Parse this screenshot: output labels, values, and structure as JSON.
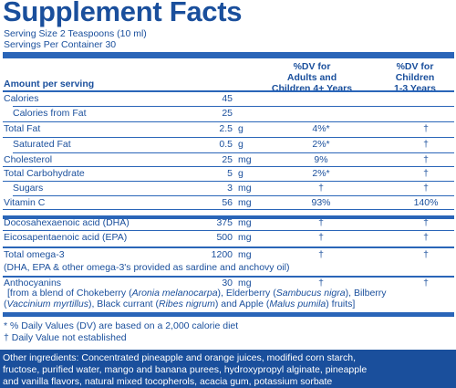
{
  "title": "Supplement Facts",
  "serving_size": "Serving Size 2 Teaspoons (10 ml)",
  "servings_per_container": "Servings Per Container 30",
  "headers": {
    "amount": "Amount per serving",
    "adults_line1": "%DV for",
    "adults_line2": "Adults and",
    "adults_line3": "Children 4+ Years",
    "children_line1": "%DV for",
    "children_line2": "Children",
    "children_line3": "1-3 Years"
  },
  "rows": [
    {
      "name": "Calories",
      "amt": "45",
      "unit": "",
      "dv_adult": "",
      "dv_child": ""
    },
    {
      "name": "Calories from Fat",
      "amt": "25",
      "unit": "",
      "dv_adult": "",
      "dv_child": ""
    },
    {
      "name": "Total Fat",
      "amt": "2.5",
      "unit": "g",
      "dv_adult": "4%*",
      "dv_child": "†"
    },
    {
      "name": "Saturated Fat",
      "amt": "0.5",
      "unit": "g",
      "dv_adult": "2%*",
      "dv_child": "†"
    },
    {
      "name": "Cholesterol",
      "amt": "25",
      "unit": "mg",
      "dv_adult": "9%",
      "dv_child": "†"
    },
    {
      "name": "Total Carbohydrate",
      "amt": "5",
      "unit": "g",
      "dv_adult": "2%*",
      "dv_child": "†"
    },
    {
      "name": "Sugars",
      "amt": "3",
      "unit": "mg",
      "dv_adult": "†",
      "dv_child": "†"
    },
    {
      "name": "Vitamin C",
      "amt": "56",
      "unit": "mg",
      "dv_adult": "93%",
      "dv_child": "140%"
    },
    {
      "name": "Docosahexaenoic acid (DHA)",
      "amt": "375",
      "unit": "mg",
      "dv_adult": "†",
      "dv_child": "†"
    },
    {
      "name": "Eicosapentaenoic acid (EPA)",
      "amt": "500",
      "unit": "mg",
      "dv_adult": "†",
      "dv_child": "†"
    },
    {
      "name": "Total omega-3",
      "amt": "1200",
      "unit": "mg",
      "dv_adult": "†",
      "dv_child": "†"
    },
    {
      "name": "Anthocyanins",
      "amt": "30",
      "unit": "mg",
      "dv_adult": "†",
      "dv_child": "†"
    }
  ],
  "omega3_note": "(DHA, EPA & other omega-3's provided as sardine and anchovy oil)",
  "anthocyanins_note": {
    "seg1": "[from a blend of Chokeberry (",
    "chokeberry": "Aronia melanocarpa",
    "seg2": "), Elderberry (",
    "elderberry": "Sambucus nigra",
    "seg3": "), Bilberry",
    "seg4": "(",
    "bilberry": "Vaccinium myrtillus",
    "seg5": "), Black currant (",
    "currant": "Ribes nigrum",
    "seg6": ") and Apple (",
    "apple": "Malus pumila",
    "seg7": ") fruits]"
  },
  "footnotes": {
    "dv": "* % Daily Values (DV) are based on a 2,000 calorie diet",
    "not_established": "† Daily Value not established"
  },
  "other_ingredients": {
    "line1": "Other ingredients: Concentrated pineapple and orange juices, modified corn starch,",
    "line2": "fructose, purified water, mango and banana purees, hydroxypropyl alginate, pineapple",
    "line3": "and vanilla flavors, natural mixed tocopherols, acacia gum, potassium sorbate"
  },
  "colors": {
    "text": "#1a4f9c",
    "rule": "#2a65b8",
    "footer_bg": "#1a4f9c"
  }
}
